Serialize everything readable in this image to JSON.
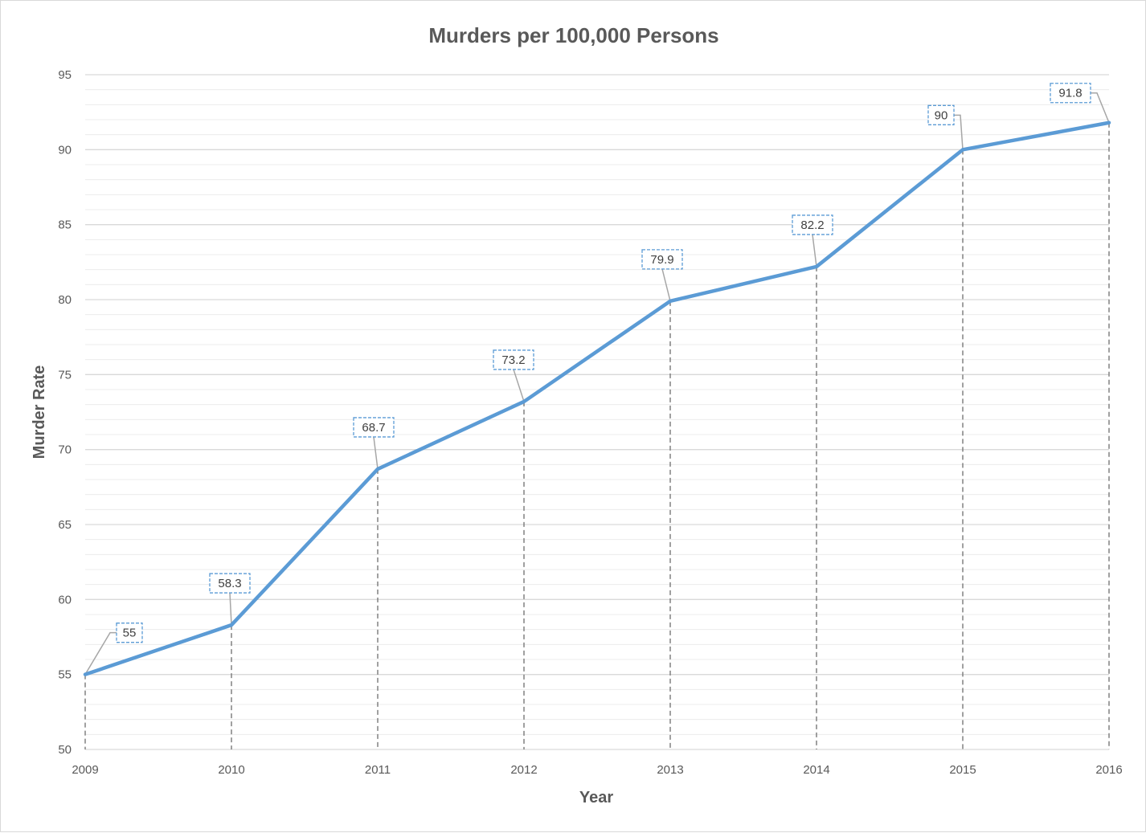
{
  "chart_data": {
    "type": "line",
    "title": "Murders per 100,000 Persons",
    "xlabel": "Year",
    "ylabel": "Murder Rate",
    "categories": [
      "2009",
      "2010",
      "2011",
      "2012",
      "2013",
      "2014",
      "2015",
      "2016"
    ],
    "values": [
      55,
      58.3,
      68.7,
      73.2,
      79.9,
      82.2,
      90,
      91.8
    ],
    "ylim": [
      50,
      95
    ],
    "y_ticks": [
      50,
      55,
      60,
      65,
      70,
      75,
      80,
      85,
      90,
      95
    ],
    "y_minor_step": 1,
    "grid": true,
    "drop_lines": true,
    "data_labels": true,
    "line_color": "#5b9bd5",
    "label_border_color": "#5b9bd5",
    "grid_color": "#d9d9d9",
    "drop_line_color": "#808080"
  }
}
